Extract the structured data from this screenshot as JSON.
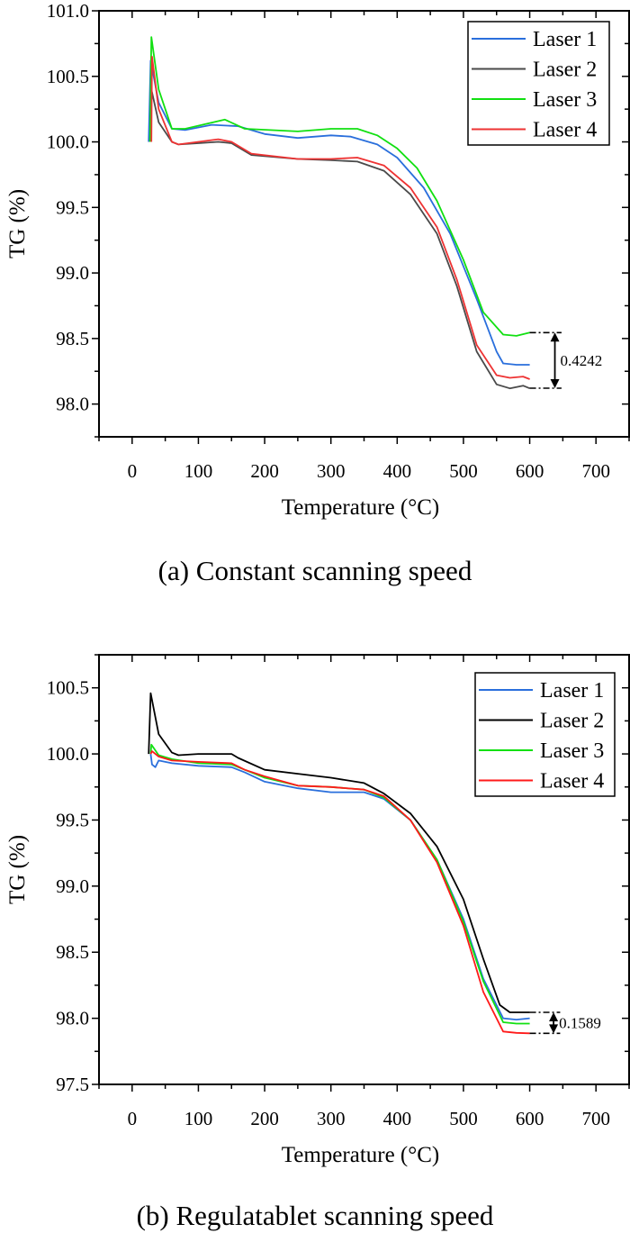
{
  "chart_data": [
    {
      "type": "line",
      "caption": "(a) Constant scanning speed",
      "xlabel": "Temperature (°C)",
      "ylabel": "TG (%)",
      "xlim": [
        -50,
        750
      ],
      "ylim": [
        97.75,
        101.0
      ],
      "xticks": [
        0,
        100,
        200,
        300,
        400,
        500,
        600,
        700
      ],
      "yticks": [
        98.0,
        98.5,
        99.0,
        99.5,
        100.0,
        100.5,
        101.0
      ],
      "ytick_labels": [
        "98.0",
        "98.5",
        "99.0",
        "99.5",
        "100.0",
        "100.5",
        "101.0"
      ],
      "legend_position": "top-right",
      "series": [
        {
          "name": "Laser 1",
          "color": "#2a6fdc",
          "x": [
            25,
            28,
            40,
            60,
            80,
            120,
            160,
            200,
            250,
            300,
            330,
            370,
            400,
            440,
            480,
            520,
            550,
            560,
            580,
            600
          ],
          "y": [
            100.0,
            100.62,
            100.3,
            100.1,
            100.09,
            100.13,
            100.12,
            100.06,
            100.03,
            100.05,
            100.04,
            99.98,
            99.88,
            99.65,
            99.3,
            98.8,
            98.4,
            98.31,
            98.3,
            98.3
          ]
        },
        {
          "name": "Laser 2",
          "color": "#4a4a4a",
          "x": [
            27,
            29,
            40,
            60,
            70,
            100,
            130,
            150,
            180,
            250,
            300,
            340,
            380,
            420,
            460,
            490,
            520,
            550,
            570,
            590,
            600
          ],
          "y": [
            100.0,
            100.4,
            100.15,
            100.0,
            99.98,
            99.99,
            100.0,
            99.99,
            99.9,
            99.87,
            99.86,
            99.85,
            99.78,
            99.6,
            99.3,
            98.9,
            98.4,
            98.15,
            98.12,
            98.14,
            98.12
          ]
        },
        {
          "name": "Laser 3",
          "color": "#11e011",
          "x": [
            27,
            29,
            40,
            60,
            80,
            140,
            170,
            250,
            300,
            340,
            370,
            400,
            430,
            460,
            500,
            530,
            560,
            580,
            600
          ],
          "y": [
            100.0,
            100.8,
            100.4,
            100.1,
            100.1,
            100.17,
            100.1,
            100.08,
            100.1,
            100.1,
            100.05,
            99.95,
            99.8,
            99.55,
            99.1,
            98.7,
            98.53,
            98.52,
            98.545
          ]
        },
        {
          "name": "Laser 4",
          "color": "#ee3333",
          "x": [
            29,
            30,
            40,
            60,
            70,
            100,
            130,
            150,
            180,
            250,
            300,
            340,
            380,
            420,
            460,
            490,
            520,
            550,
            570,
            590,
            600
          ],
          "y": [
            100.0,
            100.65,
            100.25,
            100.0,
            99.98,
            100.0,
            100.02,
            100.0,
            99.91,
            99.87,
            99.87,
            99.88,
            99.82,
            99.65,
            99.35,
            98.95,
            98.45,
            98.22,
            98.2,
            98.21,
            98.19
          ]
        }
      ],
      "annotation": {
        "label": "0.4242",
        "x": 638,
        "y_top": 98.545,
        "y_bottom": 98.121
      }
    },
    {
      "type": "line",
      "caption": "(b) Regulatablet scanning speed",
      "xlabel": "Temperature (°C)",
      "ylabel": "TG (%)",
      "xlim": [
        -50,
        750
      ],
      "ylim": [
        97.5,
        100.75
      ],
      "xticks": [
        0,
        100,
        200,
        300,
        400,
        500,
        600,
        700
      ],
      "yticks": [
        97.5,
        98.0,
        98.5,
        99.0,
        99.5,
        100.0,
        100.5
      ],
      "ytick_labels": [
        "97.5",
        "98.0",
        "98.5",
        "99.0",
        "99.5",
        "100.0",
        "100.5"
      ],
      "legend_position": "top-right",
      "series": [
        {
          "name": "Laser 1",
          "color": "#2a6fdc",
          "x": [
            28,
            30,
            35,
            40,
            60,
            100,
            150,
            170,
            200,
            250,
            300,
            350,
            380,
            420,
            460,
            500,
            530,
            560,
            580,
            600
          ],
          "y": [
            100.0,
            99.92,
            99.9,
            99.95,
            99.93,
            99.91,
            99.9,
            99.86,
            99.79,
            99.74,
            99.71,
            99.71,
            99.66,
            99.5,
            99.2,
            98.75,
            98.3,
            98.0,
            97.99,
            98.0
          ]
        },
        {
          "name": "Laser 2",
          "color": "#000000",
          "x": [
            25,
            28,
            40,
            60,
            70,
            100,
            150,
            160,
            200,
            250,
            300,
            350,
            380,
            420,
            460,
            500,
            530,
            555,
            570,
            600
          ],
          "y": [
            100.0,
            100.46,
            100.15,
            100.01,
            99.99,
            100.0,
            100.0,
            99.97,
            99.88,
            99.85,
            99.82,
            99.78,
            99.7,
            99.55,
            99.3,
            98.9,
            98.45,
            98.1,
            98.045,
            98.045
          ]
        },
        {
          "name": "Laser 3",
          "color": "#11e011",
          "x": [
            28,
            29,
            40,
            60,
            100,
            150,
            170,
            200,
            250,
            300,
            350,
            380,
            420,
            460,
            500,
            530,
            560,
            580,
            600
          ],
          "y": [
            100.0,
            100.07,
            99.99,
            99.96,
            99.93,
            99.92,
            99.88,
            99.82,
            99.76,
            99.75,
            99.73,
            99.67,
            99.5,
            99.2,
            98.73,
            98.28,
            97.97,
            97.96,
            97.96
          ]
        },
        {
          "name": "Laser 4",
          "color": "#ff1a1a",
          "x": [
            28,
            30,
            40,
            60,
            100,
            150,
            170,
            200,
            250,
            300,
            350,
            380,
            420,
            460,
            500,
            530,
            560,
            580,
            600
          ],
          "y": [
            100.0,
            100.02,
            99.98,
            99.95,
            99.94,
            99.93,
            99.88,
            99.83,
            99.76,
            99.75,
            99.73,
            99.68,
            99.5,
            99.18,
            98.7,
            98.2,
            97.9,
            97.89,
            97.886
          ]
        }
      ],
      "annotation": {
        "label": "0.1589",
        "x": 636,
        "y_top": 98.045,
        "y_bottom": 97.886
      }
    }
  ]
}
